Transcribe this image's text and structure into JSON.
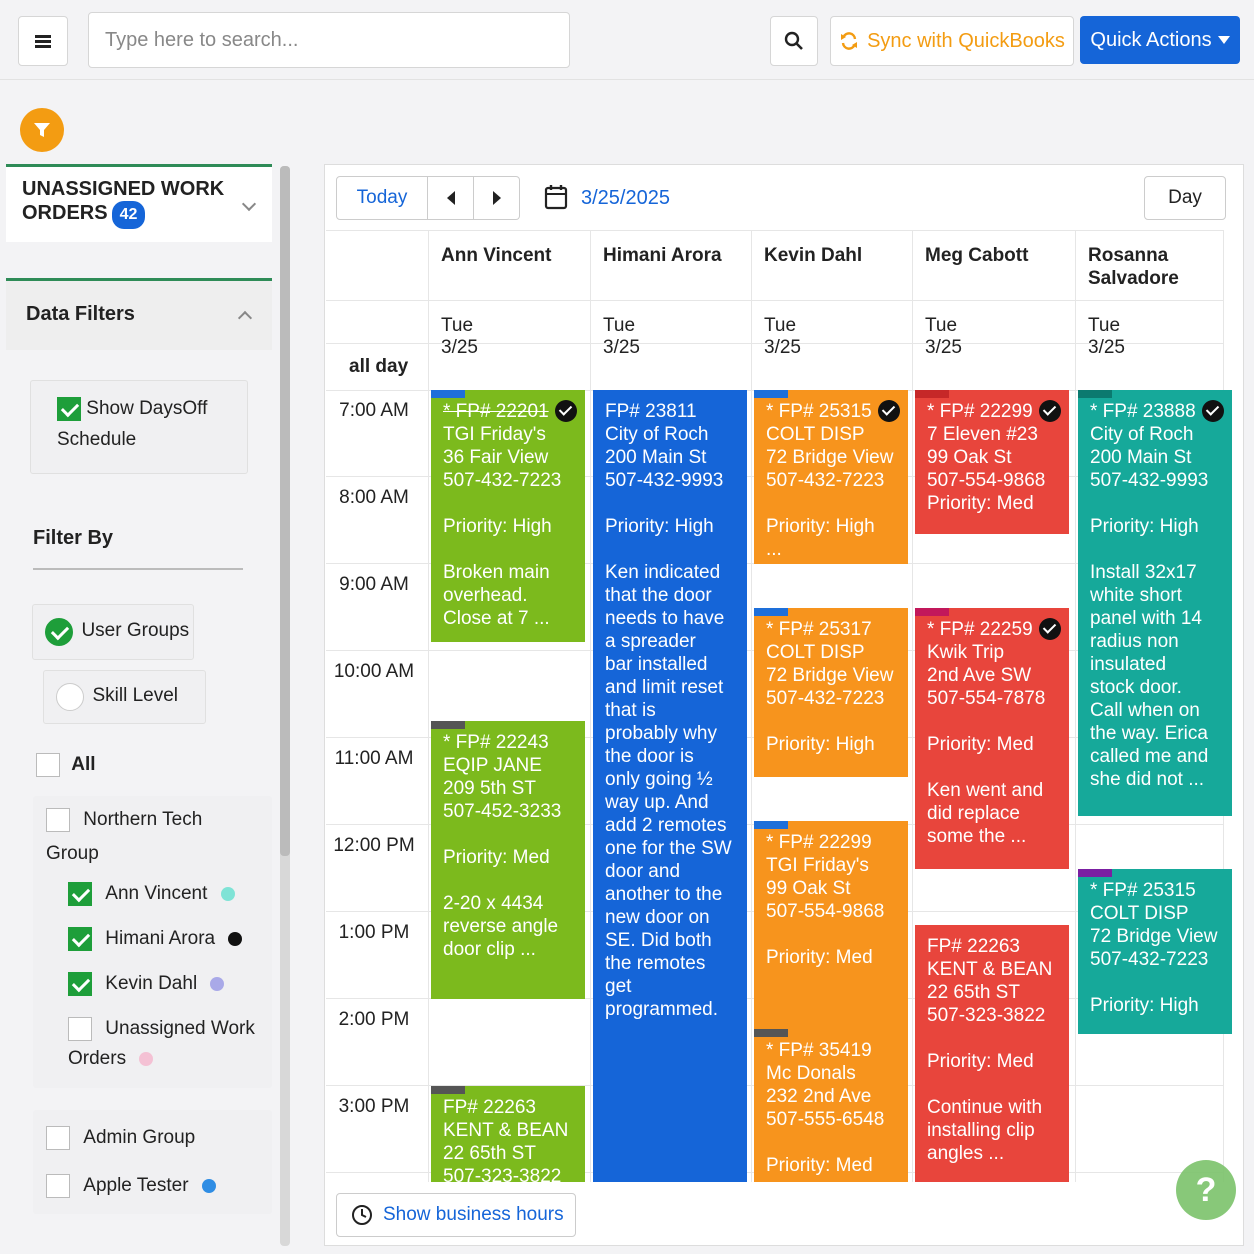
{
  "topbar": {
    "search_placeholder": "Type here to search...",
    "sync_label": "Sync with QuickBooks",
    "quick_actions_label": "Quick Actions"
  },
  "sidebar": {
    "unassigned_title_1": "UNASSIGNED WORK",
    "unassigned_title_2": "ORDERS",
    "unassigned_count": "42",
    "data_filters_label": "Data Filters",
    "show_daysoff_1": "Show DaysOff",
    "show_daysoff_2": "Schedule",
    "filter_by_label": "Filter By",
    "user_groups_label": "User Groups",
    "skill_level_label": "Skill Level",
    "all_label": "All",
    "northern_tech_1": "Northern Tech",
    "northern_tech_2": "Group",
    "members": [
      {
        "label": "Ann Vincent",
        "color": "#7fe3d6",
        "checked": true
      },
      {
        "label": "Himani Arora",
        "color": "#111111",
        "checked": true
      },
      {
        "label": "Kevin Dahl",
        "color": "#a9a9e8",
        "checked": true
      }
    ],
    "unassigned_member_1": "Unassigned Work",
    "unassigned_member_2": "Orders",
    "unassigned_member_color": "#f4c1d4",
    "admin_group_label": "Admin Group",
    "apple_tester_label": "Apple Tester",
    "apple_tester_color": "#2f8de4"
  },
  "calendar": {
    "today_label": "Today",
    "date_label": "3/25/2025",
    "view_label": "Day",
    "all_day_label": "all day",
    "columns": [
      {
        "name": "Ann Vincent",
        "date": "Tue 3/25"
      },
      {
        "name": "Himani Arora",
        "date": "Tue 3/25"
      },
      {
        "name": "Kevin Dahl",
        "date": "Tue 3/25"
      },
      {
        "name": "Meg Cabott",
        "date": "Tue 3/25"
      },
      {
        "name": "Rosanna Salvadore",
        "date": "Tue 3/25"
      }
    ],
    "times": [
      "7:00 AM",
      "8:00 AM",
      "9:00 AM",
      "10:00 AM",
      "11:00 AM",
      "12:00 PM",
      "1:00 PM",
      "2:00 PM",
      "3:00 PM"
    ],
    "events": [
      {
        "col": 0,
        "start_hour": 7.0,
        "end_hour": 9.9,
        "color": "green",
        "bar": "#1e6fd9",
        "checked": true,
        "text": "* FP# 22201\nTGI Friday's\n36 Fair View\n507-432-7223\n\nPriority: High\n\nBroken main\noverhead.\nClose at 7   ..."
      },
      {
        "col": 0,
        "start_hour": 10.8,
        "end_hour": 14.0,
        "color": "green",
        "bar": "#555555",
        "checked": false,
        "text": "* FP# 22243\nEQIP JANE\n209 5th ST\n507-452-3233\n\nPriority: Med\n\n2-20 x 4434\nreverse angle\ndoor clip   ..."
      },
      {
        "col": 0,
        "start_hour": 15.0,
        "end_hour": 16.3,
        "color": "green",
        "bar": "#555555",
        "checked": false,
        "text": "FP# 22263\nKENT & BEAN\n22 65th ST\n507-323-3822"
      },
      {
        "col": 1,
        "start_hour": 7.0,
        "end_hour": 16.3,
        "color": "blue",
        "bar": "",
        "checked": false,
        "text": "FP# 23811\nCity of Roch\n200 Main St\n507-432-9993\n\nPriority: High\n\nKen indicated\nthat the door\nneeds to have\na spreader\nbar installed\nand limit reset\nthat is\nprobably why\nthe door is\nonly going ½\nway up.  And\nadd 2 remotes\none for the SW\ndoor and\nanother to the\nnew door on\nSE.  Did both\nthe remotes\nget\nprogrammed."
      },
      {
        "col": 2,
        "start_hour": 7.0,
        "end_hour": 9.0,
        "color": "orange",
        "bar": "#1e6fd9",
        "checked": true,
        "text": "* FP# 25315\nCOLT DISP\n72 Bridge View\n507-432-7223\n\nPriority: High\n..."
      },
      {
        "col": 2,
        "start_hour": 9.5,
        "end_hour": 11.45,
        "color": "orange",
        "bar": "#1e6fd9",
        "checked": false,
        "text": "* FP# 25317\nCOLT DISP\n72 Bridge View\n507-432-7223\n\nPriority: High"
      },
      {
        "col": 2,
        "start_hour": 11.95,
        "end_hour": 14.45,
        "color": "orange",
        "bar": "#1e6fd9",
        "checked": false,
        "text": "* FP# 22299\nTGI Friday's\n99 Oak St\n507-554-9868\n\nPriority: Med"
      },
      {
        "col": 2,
        "start_hour": 14.35,
        "end_hour": 16.3,
        "color": "orange",
        "bar": "#555555",
        "checked": false,
        "text": "* FP# 35419\nMc Donals\n232 2nd Ave\n507-555-6548\n\nPriority: Med"
      },
      {
        "col": 3,
        "start_hour": 7.0,
        "end_hour": 8.65,
        "color": "red",
        "bar": "#c62828",
        "checked": true,
        "text": "* FP# 22299\n7 Eleven #23\n99 Oak St\n507-554-9868\nPriority: Med"
      },
      {
        "col": 3,
        "start_hour": 9.5,
        "end_hour": 12.5,
        "color": "red",
        "bar": "#c2185b",
        "checked": true,
        "text": "* FP# 22259\nKwik Trip\n2nd Ave SW\n507-554-7878\n\nPriority: Med\n\nKen went and\ndid replace\nsome the      ..."
      },
      {
        "col": 3,
        "start_hour": 13.15,
        "end_hour": 16.3,
        "color": "red",
        "bar": "",
        "checked": false,
        "text": "FP# 22263\nKENT & BEAN\n22 65th ST\n507-323-3822\n\nPriority: Med\n\nContinue with\ninstalling clip\nangles      ..."
      },
      {
        "col": 4,
        "start_hour": 7.0,
        "end_hour": 11.9,
        "color": "teal",
        "bar": "#0b7a6f",
        "checked": true,
        "text": "* FP# 23888\nCity of Roch\n200 Main St\n507-432-9993\n\nPriority: High\n\nInstall 32x17\nwhite short\npanel with 14\nradius non\ninsulated\nstock door.\nCall when on\nthe way. Erica\ncalled me and\nshe did not ..."
      },
      {
        "col": 4,
        "start_hour": 12.5,
        "end_hour": 14.4,
        "color": "teal",
        "bar": "#7b1fa2",
        "checked": false,
        "text": "* FP# 25315\nCOLT DISP\n72 Bridge View\n507-432-7223\n\nPriority: High"
      }
    ],
    "show_business_hours_label": "Show business hours"
  },
  "help_label": "?"
}
